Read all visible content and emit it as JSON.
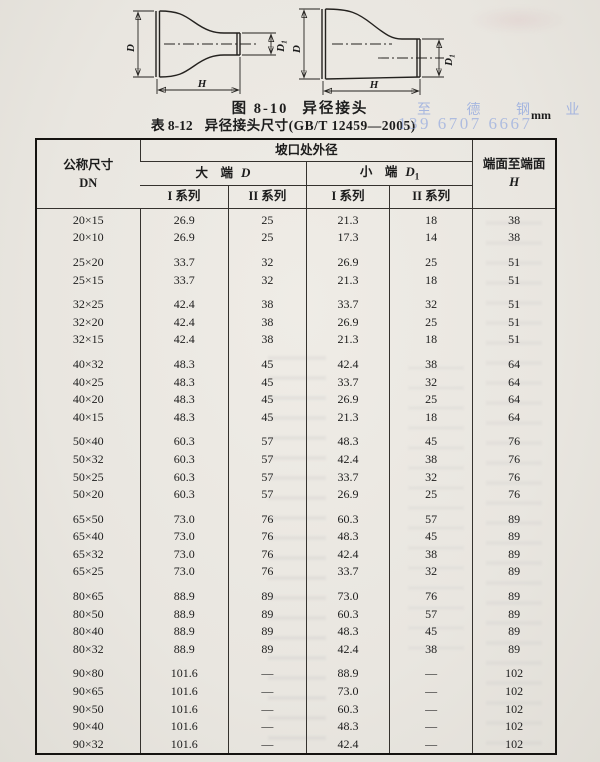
{
  "colors": {
    "watermark_blue": "#8fa6df",
    "paper": "#e9e6e0",
    "ink": "#1c1c1c"
  },
  "figure": {
    "caption_no": "图 8-10",
    "caption_title": "异径接头",
    "dim_d": "D",
    "dim_d1_sym": "D",
    "dim_d1_sub": "1",
    "dim_h": "H"
  },
  "table_caption": {
    "no": "表 8-12",
    "title": "异径接头尺寸(GB/T 12459—2005)",
    "unit": "mm"
  },
  "watermark": {
    "line1": "至 德 钢 业",
    "line2": "139 6707 6667"
  },
  "table": {
    "header": {
      "dn_line1": "公称尺寸",
      "dn_line2": "DN",
      "od_group": "坡口处外径",
      "big_end_label": "大　端",
      "big_end_sym": "D",
      "small_end_label": "小　端",
      "small_end_sym": "D",
      "small_end_sub": "1",
      "series_i": "I 系列",
      "series_ii": "II 系列",
      "h_line1": "端面至端面",
      "h_sym": "H"
    },
    "groups": [
      {
        "rows": [
          [
            "20×15",
            "26.9",
            "25",
            "21.3",
            "18",
            "38"
          ],
          [
            "20×10",
            "26.9",
            "25",
            "17.3",
            "14",
            "38"
          ]
        ]
      },
      {
        "rows": [
          [
            "25×20",
            "33.7",
            "32",
            "26.9",
            "25",
            "51"
          ],
          [
            "25×15",
            "33.7",
            "32",
            "21.3",
            "18",
            "51"
          ]
        ]
      },
      {
        "rows": [
          [
            "32×25",
            "42.4",
            "38",
            "33.7",
            "32",
            "51"
          ],
          [
            "32×20",
            "42.4",
            "38",
            "26.9",
            "25",
            "51"
          ],
          [
            "32×15",
            "42.4",
            "38",
            "21.3",
            "18",
            "51"
          ]
        ]
      },
      {
        "rows": [
          [
            "40×32",
            "48.3",
            "45",
            "42.4",
            "38",
            "64"
          ],
          [
            "40×25",
            "48.3",
            "45",
            "33.7",
            "32",
            "64"
          ],
          [
            "40×20",
            "48.3",
            "45",
            "26.9",
            "25",
            "64"
          ],
          [
            "40×15",
            "48.3",
            "45",
            "21.3",
            "18",
            "64"
          ]
        ]
      },
      {
        "rows": [
          [
            "50×40",
            "60.3",
            "57",
            "48.3",
            "45",
            "76"
          ],
          [
            "50×32",
            "60.3",
            "57",
            "42.4",
            "38",
            "76"
          ],
          [
            "50×25",
            "60.3",
            "57",
            "33.7",
            "32",
            "76"
          ],
          [
            "50×20",
            "60.3",
            "57",
            "26.9",
            "25",
            "76"
          ]
        ]
      },
      {
        "rows": [
          [
            "65×50",
            "73.0",
            "76",
            "60.3",
            "57",
            "89"
          ],
          [
            "65×40",
            "73.0",
            "76",
            "48.3",
            "45",
            "89"
          ],
          [
            "65×32",
            "73.0",
            "76",
            "42.4",
            "38",
            "89"
          ],
          [
            "65×25",
            "73.0",
            "76",
            "33.7",
            "32",
            "89"
          ]
        ]
      },
      {
        "rows": [
          [
            "80×65",
            "88.9",
            "89",
            "73.0",
            "76",
            "89"
          ],
          [
            "80×50",
            "88.9",
            "89",
            "60.3",
            "57",
            "89"
          ],
          [
            "80×40",
            "88.9",
            "89",
            "48.3",
            "45",
            "89"
          ],
          [
            "80×32",
            "88.9",
            "89",
            "42.4",
            "38",
            "89"
          ]
        ]
      },
      {
        "rows": [
          [
            "90×80",
            "101.6",
            "—",
            "88.9",
            "—",
            "102"
          ],
          [
            "90×65",
            "101.6",
            "—",
            "73.0",
            "—",
            "102"
          ],
          [
            "90×50",
            "101.6",
            "—",
            "60.3",
            "—",
            "102"
          ],
          [
            "90×40",
            "101.6",
            "—",
            "48.3",
            "—",
            "102"
          ],
          [
            "90×32",
            "101.6",
            "—",
            "42.4",
            "—",
            "102"
          ]
        ]
      }
    ]
  }
}
